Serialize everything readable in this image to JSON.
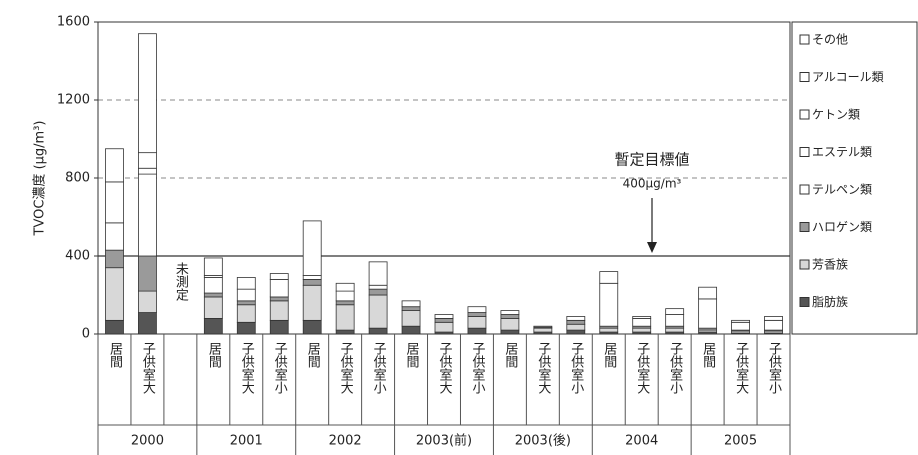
{
  "chart_data": {
    "type": "stacked_bar",
    "y_label": "TVOC濃度 (μg/m³)",
    "categories": [
      "居間",
      "子供室大",
      null,
      "居間",
      "子供室大",
      "子供室小",
      "居間",
      "子供室大",
      "子供室小",
      "居間",
      "子供室大",
      "子供室小",
      "居間",
      "子供室大",
      "子供室小",
      "居間",
      "子供室大",
      "子供室小",
      "居間",
      "子供室大",
      "子供室小"
    ],
    "groups": [
      "2000",
      "2001",
      "2002",
      "2003(前)",
      "2003(後)",
      "2004",
      "2005"
    ],
    "group_size": 3,
    "ylim": [
      0,
      1600
    ],
    "yticks": [
      0,
      400,
      800,
      1200,
      1600
    ],
    "grid": true,
    "legend": "right",
    "annotations": {
      "missing": "未測定",
      "target_title": "暫定目標値",
      "target_label": "400μg/m³",
      "target_value": 400
    },
    "series": [
      {
        "name": "脂肪族",
        "color": "#555555",
        "values": [
          70,
          110,
          null,
          80,
          60,
          70,
          70,
          20,
          30,
          40,
          10,
          30,
          20,
          10,
          20,
          10,
          10,
          10,
          10,
          5,
          5
        ]
      },
      {
        "name": "芳香族",
        "color": "#d8d8d8",
        "values": [
          270,
          110,
          null,
          110,
          90,
          100,
          180,
          130,
          170,
          80,
          50,
          60,
          60,
          20,
          30,
          20,
          20,
          20,
          10,
          10,
          10
        ]
      },
      {
        "name": "ハロゲン類",
        "color": "#9a9a9a",
        "values": [
          90,
          180,
          null,
          20,
          20,
          20,
          30,
          20,
          30,
          20,
          20,
          20,
          20,
          5,
          20,
          10,
          10,
          10,
          10,
          5,
          5
        ]
      },
      {
        "name": "テルペン類",
        "color": "#ffffff",
        "values": [
          140,
          420,
          null,
          80,
          60,
          90,
          20,
          50,
          20,
          30,
          20,
          30,
          20,
          5,
          20,
          220,
          40,
          60,
          150,
          40,
          50
        ]
      },
      {
        "name": "エステル類",
        "color": "#ffffff",
        "values": [
          210,
          30,
          null,
          10,
          0,
          0,
          0,
          0,
          0,
          0,
          0,
          0,
          0,
          0,
          0,
          0,
          0,
          0,
          0,
          0,
          0
        ]
      },
      {
        "name": "ケトン類",
        "color": "#ffffff",
        "values": [
          0,
          80,
          null,
          0,
          0,
          0,
          0,
          0,
          0,
          0,
          0,
          0,
          0,
          0,
          0,
          0,
          0,
          0,
          0,
          0,
          0
        ]
      },
      {
        "name": "アルコール類",
        "color": "#ffffff",
        "values": [
          0,
          0,
          null,
          0,
          0,
          0,
          0,
          0,
          0,
          0,
          0,
          0,
          0,
          0,
          0,
          0,
          0,
          0,
          0,
          0,
          0
        ]
      },
      {
        "name": "その他",
        "color": "#ffffff",
        "values": [
          170,
          610,
          null,
          90,
          60,
          30,
          280,
          40,
          120,
          0,
          0,
          0,
          0,
          0,
          0,
          60,
          10,
          30,
          60,
          10,
          20
        ]
      }
    ]
  }
}
